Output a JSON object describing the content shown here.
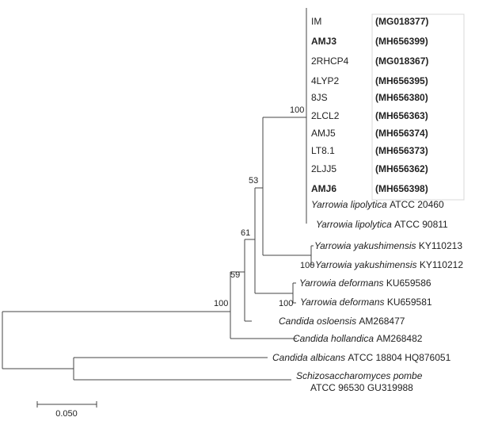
{
  "tree": {
    "taxa": [
      {
        "id": "im",
        "parts": [
          {
            "t": "IM"
          }
        ],
        "accession": "(MG018377)"
      },
      {
        "id": "amj3",
        "parts": [
          {
            "t": "AMJ3",
            "b": true
          }
        ],
        "accession": "(MH656399)"
      },
      {
        "id": "2rhcp4",
        "parts": [
          {
            "t": "2RHCP4"
          }
        ],
        "accession": "(MG018367)"
      },
      {
        "id": "4lyp2",
        "parts": [
          {
            "t": "4LYP2"
          }
        ],
        "accession": "(MH656395)"
      },
      {
        "id": "8js",
        "parts": [
          {
            "t": "8JS"
          }
        ],
        "accession": "(MH656380)"
      },
      {
        "id": "2lcl2",
        "parts": [
          {
            "t": "2LCL2"
          }
        ],
        "accession": "(MH656363)"
      },
      {
        "id": "amj5",
        "parts": [
          {
            "t": "AMJ5"
          }
        ],
        "accession": "(MH656374)"
      },
      {
        "id": "lt81",
        "parts": [
          {
            "t": "LT8.1"
          }
        ],
        "accession": "(MH656373)"
      },
      {
        "id": "2ljj5",
        "parts": [
          {
            "t": "2LJJ5"
          }
        ],
        "accession": "(MH656362)"
      },
      {
        "id": "amj6",
        "parts": [
          {
            "t": "AMJ6",
            "b": true
          }
        ],
        "accession": "(MH656398)"
      },
      {
        "id": "ylip1",
        "parts": [
          {
            "t": "Yarrowia lipolytica",
            "i": true
          },
          {
            "t": " ATCC 20460"
          }
        ]
      },
      {
        "id": "ylip2",
        "parts": [
          {
            "t": "Yarrowia lipolytica",
            "i": true
          },
          {
            "t": " ATCC 90811"
          }
        ]
      },
      {
        "id": "yyak1",
        "parts": [
          {
            "t": "Yarrowia yakushimensis",
            "i": true
          },
          {
            "t": " KY110213"
          }
        ]
      },
      {
        "id": "yyak2",
        "parts": [
          {
            "t": "Yarrowia yakushimensis",
            "i": true
          },
          {
            "t": " KY110212"
          }
        ]
      },
      {
        "id": "ydef1",
        "parts": [
          {
            "t": "Yarrowia deformans",
            "i": true
          },
          {
            "t": " KU659586"
          }
        ]
      },
      {
        "id": "ydef2",
        "parts": [
          {
            "t": "Yarrowia deformans",
            "i": true
          },
          {
            "t": " KU659581"
          }
        ]
      },
      {
        "id": "cosl",
        "parts": [
          {
            "t": "Candida osloensis",
            "i": true
          },
          {
            "t": " AM268477"
          }
        ]
      },
      {
        "id": "chol",
        "parts": [
          {
            "t": "Candida hollandica",
            "i": true
          },
          {
            "t": " AM268482"
          }
        ]
      },
      {
        "id": "calb",
        "parts": [
          {
            "t": "Candida albicans",
            "i": true
          },
          {
            "t": " ATCC 18804 HQ876051"
          }
        ]
      },
      {
        "id": "spom",
        "parts": [
          {
            "t": "Schizosaccharomyces pombe",
            "i": true
          }
        ],
        "line2": "ATCC 96530 GU319988"
      }
    ],
    "bootstrap": [
      "100",
      "53",
      "61",
      "59",
      "100",
      "100",
      "100"
    ],
    "scale_label": "0.050"
  }
}
